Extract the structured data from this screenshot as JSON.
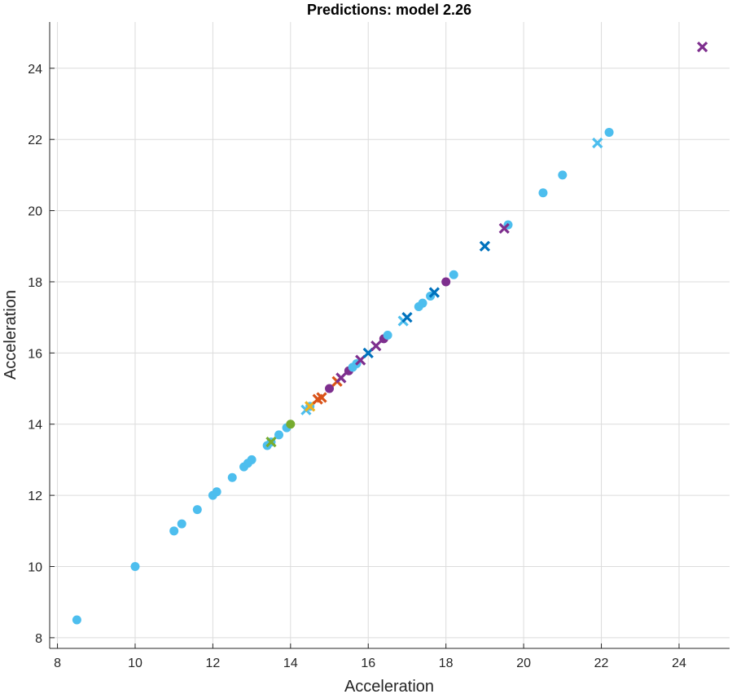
{
  "chart_data": {
    "type": "scatter",
    "title": "Predictions: model 2.26",
    "xlabel": "Acceleration",
    "ylabel": "Acceleration",
    "xlim": [
      7.8,
      25.3
    ],
    "ylim": [
      7.7,
      25.3
    ],
    "xticks": [
      8,
      10,
      12,
      14,
      16,
      18,
      20,
      22,
      24
    ],
    "yticks": [
      8,
      10,
      12,
      14,
      16,
      18,
      20,
      22,
      24
    ],
    "grid": true,
    "colors": {
      "light_blue": "#4DBEEE",
      "dark_blue": "#0072BD",
      "purple": "#7E2F8E",
      "orange": "#D95319",
      "yellow": "#EDB120",
      "green": "#77AC30"
    },
    "points": [
      {
        "x": 8.5,
        "y": 8.5,
        "color": "light_blue",
        "marker": "dot"
      },
      {
        "x": 10.0,
        "y": 10.0,
        "color": "light_blue",
        "marker": "dot"
      },
      {
        "x": 11.0,
        "y": 11.0,
        "color": "light_blue",
        "marker": "dot"
      },
      {
        "x": 11.2,
        "y": 11.2,
        "color": "light_blue",
        "marker": "dot"
      },
      {
        "x": 11.6,
        "y": 11.6,
        "color": "light_blue",
        "marker": "dot"
      },
      {
        "x": 12.0,
        "y": 12.0,
        "color": "light_blue",
        "marker": "dot"
      },
      {
        "x": 12.1,
        "y": 12.1,
        "color": "light_blue",
        "marker": "dot"
      },
      {
        "x": 12.5,
        "y": 12.5,
        "color": "light_blue",
        "marker": "dot"
      },
      {
        "x": 12.8,
        "y": 12.8,
        "color": "light_blue",
        "marker": "dot"
      },
      {
        "x": 12.9,
        "y": 12.9,
        "color": "light_blue",
        "marker": "dot"
      },
      {
        "x": 13.0,
        "y": 13.0,
        "color": "light_blue",
        "marker": "dot"
      },
      {
        "x": 13.4,
        "y": 13.4,
        "color": "light_blue",
        "marker": "dot"
      },
      {
        "x": 13.5,
        "y": 13.5,
        "color": "light_blue",
        "marker": "dot"
      },
      {
        "x": 13.7,
        "y": 13.7,
        "color": "light_blue",
        "marker": "dot"
      },
      {
        "x": 13.9,
        "y": 13.9,
        "color": "light_blue",
        "marker": "dot"
      },
      {
        "x": 14.0,
        "y": 14.0,
        "color": "green",
        "marker": "dot"
      },
      {
        "x": 14.5,
        "y": 14.5,
        "color": "light_blue",
        "marker": "dot"
      },
      {
        "x": 15.0,
        "y": 15.0,
        "color": "purple",
        "marker": "dot"
      },
      {
        "x": 15.5,
        "y": 15.5,
        "color": "purple",
        "marker": "dot"
      },
      {
        "x": 15.6,
        "y": 15.6,
        "color": "light_blue",
        "marker": "dot"
      },
      {
        "x": 15.7,
        "y": 15.7,
        "color": "light_blue",
        "marker": "dot"
      },
      {
        "x": 16.4,
        "y": 16.4,
        "color": "purple",
        "marker": "dot"
      },
      {
        "x": 16.5,
        "y": 16.5,
        "color": "light_blue",
        "marker": "dot"
      },
      {
        "x": 17.3,
        "y": 17.3,
        "color": "light_blue",
        "marker": "dot"
      },
      {
        "x": 17.4,
        "y": 17.4,
        "color": "light_blue",
        "marker": "dot"
      },
      {
        "x": 17.6,
        "y": 17.6,
        "color": "light_blue",
        "marker": "dot"
      },
      {
        "x": 18.0,
        "y": 18.0,
        "color": "purple",
        "marker": "dot"
      },
      {
        "x": 18.2,
        "y": 18.2,
        "color": "light_blue",
        "marker": "dot"
      },
      {
        "x": 19.6,
        "y": 19.6,
        "color": "light_blue",
        "marker": "dot"
      },
      {
        "x": 20.5,
        "y": 20.5,
        "color": "light_blue",
        "marker": "dot"
      },
      {
        "x": 21.0,
        "y": 21.0,
        "color": "light_blue",
        "marker": "dot"
      },
      {
        "x": 22.2,
        "y": 22.2,
        "color": "light_blue",
        "marker": "dot"
      },
      {
        "x": 13.5,
        "y": 13.5,
        "color": "green",
        "marker": "x"
      },
      {
        "x": 14.4,
        "y": 14.4,
        "color": "light_blue",
        "marker": "x"
      },
      {
        "x": 14.5,
        "y": 14.5,
        "color": "yellow",
        "marker": "x"
      },
      {
        "x": 14.7,
        "y": 14.7,
        "color": "orange",
        "marker": "x"
      },
      {
        "x": 14.8,
        "y": 14.75,
        "color": "orange",
        "marker": "x"
      },
      {
        "x": 15.2,
        "y": 15.2,
        "color": "orange",
        "marker": "x"
      },
      {
        "x": 15.3,
        "y": 15.3,
        "color": "purple",
        "marker": "x"
      },
      {
        "x": 15.8,
        "y": 15.8,
        "color": "purple",
        "marker": "x"
      },
      {
        "x": 16.0,
        "y": 16.0,
        "color": "dark_blue",
        "marker": "x"
      },
      {
        "x": 16.2,
        "y": 16.2,
        "color": "purple",
        "marker": "x"
      },
      {
        "x": 16.9,
        "y": 16.9,
        "color": "light_blue",
        "marker": "x"
      },
      {
        "x": 17.0,
        "y": 17.0,
        "color": "dark_blue",
        "marker": "x"
      },
      {
        "x": 17.7,
        "y": 17.7,
        "color": "dark_blue",
        "marker": "x"
      },
      {
        "x": 19.0,
        "y": 19.0,
        "color": "dark_blue",
        "marker": "x"
      },
      {
        "x": 19.5,
        "y": 19.5,
        "color": "purple",
        "marker": "x"
      },
      {
        "x": 21.9,
        "y": 21.9,
        "color": "light_blue",
        "marker": "x"
      },
      {
        "x": 24.6,
        "y": 24.6,
        "color": "purple",
        "marker": "x"
      }
    ]
  }
}
